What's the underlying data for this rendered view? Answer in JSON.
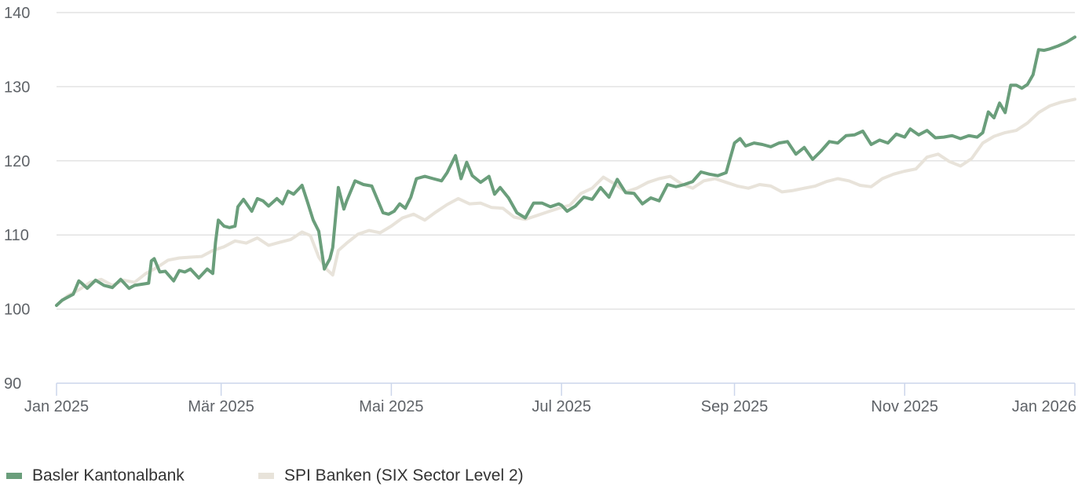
{
  "chart_data": {
    "type": "line",
    "title": "",
    "xlabel": "",
    "ylabel": "",
    "ylim": [
      90,
      140
    ],
    "yticks": [
      90,
      100,
      110,
      120,
      130,
      140
    ],
    "xlim": [
      "2025-01-01",
      "2026-01-01"
    ],
    "xticks": [
      {
        "date": "2025-01-01",
        "label": "Jan 2025"
      },
      {
        "date": "2025-03-01",
        "label": "Mär 2025"
      },
      {
        "date": "2025-05-01",
        "label": "Mai 2025"
      },
      {
        "date": "2025-07-01",
        "label": "Jul 2025"
      },
      {
        "date": "2025-09-01",
        "label": "Sep 2025"
      },
      {
        "date": "2025-11-01",
        "label": "Nov 2025"
      },
      {
        "date": "2026-01-01",
        "label": "Jan 2026"
      }
    ],
    "grid": true,
    "legend_position": "bottom-left",
    "series": [
      {
        "name": "Basler Kantonalbank",
        "color": "#6a9e7b",
        "x": [
          "2025-01-01",
          "2025-01-03",
          "2025-01-07",
          "2025-01-09",
          "2025-01-10",
          "2025-01-12",
          "2025-01-15",
          "2025-01-18",
          "2025-01-21",
          "2025-01-24",
          "2025-01-27",
          "2025-01-28",
          "2025-01-29",
          "2025-02-03",
          "2025-02-04",
          "2025-02-05",
          "2025-02-07",
          "2025-02-09",
          "2025-02-12",
          "2025-02-14",
          "2025-02-16",
          "2025-02-18",
          "2025-02-19",
          "2025-02-21",
          "2025-02-24",
          "2025-02-26",
          "2025-02-27",
          "2025-02-28",
          "2025-03-02",
          "2025-03-04",
          "2025-03-06",
          "2025-03-07",
          "2025-03-09",
          "2025-03-12",
          "2025-03-14",
          "2025-03-16",
          "2025-03-18",
          "2025-03-21",
          "2025-03-23",
          "2025-03-25",
          "2025-03-27",
          "2025-03-30",
          "2025-04-01",
          "2025-04-03",
          "2025-04-05",
          "2025-04-07",
          "2025-04-09",
          "2025-04-10",
          "2025-04-12",
          "2025-04-14",
          "2025-04-15",
          "2025-04-18",
          "2025-04-21",
          "2025-04-24",
          "2025-04-28",
          "2025-04-30",
          "2025-05-02",
          "2025-05-04",
          "2025-05-06",
          "2025-05-08",
          "2025-05-10",
          "2025-05-13",
          "2025-05-16",
          "2025-05-19",
          "2025-05-21",
          "2025-05-24",
          "2025-05-26",
          "2025-05-28",
          "2025-05-30",
          "2025-06-02",
          "2025-06-05",
          "2025-06-07",
          "2025-06-09",
          "2025-06-12",
          "2025-06-15",
          "2025-06-18",
          "2025-06-21",
          "2025-06-24",
          "2025-06-27",
          "2025-06-30",
          "2025-07-01",
          "2025-07-03",
          "2025-07-06",
          "2025-07-09",
          "2025-07-12",
          "2025-07-15",
          "2025-07-18",
          "2025-07-21",
          "2025-07-24",
          "2025-07-27",
          "2025-07-30",
          "2025-08-02",
          "2025-08-05",
          "2025-08-08",
          "2025-08-11",
          "2025-08-14",
          "2025-08-17",
          "2025-08-20",
          "2025-08-23",
          "2025-08-26",
          "2025-08-29",
          "2025-09-01",
          "2025-09-03",
          "2025-09-05",
          "2025-09-08",
          "2025-09-11",
          "2025-09-14",
          "2025-09-17",
          "2025-09-20",
          "2025-09-23",
          "2025-09-26",
          "2025-09-29",
          "2025-10-02",
          "2025-10-05",
          "2025-10-08",
          "2025-10-11",
          "2025-10-14",
          "2025-10-17",
          "2025-10-20",
          "2025-10-23",
          "2025-10-26",
          "2025-10-29",
          "2025-11-01",
          "2025-11-03",
          "2025-11-06",
          "2025-11-09",
          "2025-11-12",
          "2025-11-15",
          "2025-11-18",
          "2025-11-21",
          "2025-11-24",
          "2025-11-27",
          "2025-11-29",
          "2025-12-01",
          "2025-12-03",
          "2025-12-05",
          "2025-12-07",
          "2025-12-09",
          "2025-12-11",
          "2025-12-13",
          "2025-12-15",
          "2025-12-17",
          "2025-12-19",
          "2025-12-21",
          "2025-12-23",
          "2025-12-26",
          "2025-12-29",
          "2026-01-01"
        ],
        "values": [
          100.5,
          101.2,
          102.0,
          103.8,
          103.5,
          102.8,
          103.9,
          103.2,
          102.9,
          104.0,
          102.8,
          103.0,
          103.2,
          103.5,
          106.5,
          106.8,
          105.0,
          105.1,
          103.8,
          105.2,
          105.0,
          105.4,
          105.0,
          104.2,
          105.4,
          104.8,
          109.0,
          112.0,
          111.2,
          111.0,
          111.2,
          113.8,
          114.8,
          113.2,
          114.9,
          114.6,
          113.9,
          114.9,
          114.2,
          115.9,
          115.5,
          116.7,
          114.4,
          112.0,
          110.5,
          105.4,
          106.8,
          108.3,
          116.4,
          113.5,
          114.6,
          117.3,
          116.8,
          116.6,
          113.0,
          112.8,
          113.2,
          114.2,
          113.6,
          115.1,
          117.6,
          117.9,
          117.6,
          117.3,
          118.4,
          120.7,
          117.6,
          119.8,
          118.0,
          117.1,
          117.9,
          115.5,
          116.4,
          115.0,
          113.0,
          112.3,
          114.3,
          114.3,
          113.8,
          114.2,
          114.0,
          113.2,
          113.9,
          115.1,
          114.8,
          116.4,
          115.1,
          117.5,
          115.7,
          115.6,
          114.2,
          115.0,
          114.6,
          116.8,
          116.5,
          116.8,
          117.2,
          118.5,
          118.2,
          118.0,
          118.4,
          122.4,
          123.0,
          122.0,
          122.4,
          122.2,
          121.9,
          122.4,
          122.6,
          120.9,
          121.8,
          120.2,
          121.3,
          122.6,
          122.4,
          123.4,
          123.5,
          124.0,
          122.2,
          122.8,
          122.4,
          123.6,
          123.2,
          124.3,
          123.5,
          124.1,
          123.1,
          123.2,
          123.4,
          123.0,
          123.4,
          123.2,
          123.8,
          126.6,
          125.8,
          127.8,
          126.5,
          130.2,
          130.2,
          129.8,
          130.3,
          131.6,
          135.0,
          134.9,
          135.1,
          135.5,
          136.0,
          136.7
        ]
      },
      {
        "name": "SPI Banken (SIX Sector Level 2)",
        "color": "#e8e3da",
        "x": [
          "2025-01-01",
          "2025-01-05",
          "2025-01-09",
          "2025-01-13",
          "2025-01-17",
          "2025-01-21",
          "2025-01-25",
          "2025-01-29",
          "2025-02-02",
          "2025-02-06",
          "2025-02-10",
          "2025-02-14",
          "2025-02-18",
          "2025-02-22",
          "2025-02-26",
          "2025-03-02",
          "2025-03-06",
          "2025-03-10",
          "2025-03-14",
          "2025-03-18",
          "2025-03-22",
          "2025-03-26",
          "2025-03-30",
          "2025-04-02",
          "2025-04-05",
          "2025-04-08",
          "2025-04-10",
          "2025-04-12",
          "2025-04-15",
          "2025-04-19",
          "2025-04-23",
          "2025-04-27",
          "2025-05-01",
          "2025-05-05",
          "2025-05-09",
          "2025-05-13",
          "2025-05-17",
          "2025-05-21",
          "2025-05-25",
          "2025-05-29",
          "2025-06-02",
          "2025-06-06",
          "2025-06-10",
          "2025-06-14",
          "2025-06-18",
          "2025-06-22",
          "2025-06-26",
          "2025-06-30",
          "2025-07-04",
          "2025-07-08",
          "2025-07-12",
          "2025-07-16",
          "2025-07-20",
          "2025-07-24",
          "2025-07-28",
          "2025-08-01",
          "2025-08-05",
          "2025-08-09",
          "2025-08-13",
          "2025-08-17",
          "2025-08-21",
          "2025-08-25",
          "2025-08-29",
          "2025-09-02",
          "2025-09-06",
          "2025-09-10",
          "2025-09-14",
          "2025-09-18",
          "2025-09-22",
          "2025-09-26",
          "2025-09-30",
          "2025-10-04",
          "2025-10-08",
          "2025-10-12",
          "2025-10-16",
          "2025-10-20",
          "2025-10-24",
          "2025-10-28",
          "2025-11-01",
          "2025-11-05",
          "2025-11-09",
          "2025-11-13",
          "2025-11-17",
          "2025-11-21",
          "2025-11-25",
          "2025-11-29",
          "2025-12-03",
          "2025-12-07",
          "2025-12-11",
          "2025-12-15",
          "2025-12-19",
          "2025-12-23",
          "2025-12-27",
          "2026-01-01"
        ],
        "values": [
          100.5,
          101.8,
          102.6,
          103.6,
          104.0,
          103.2,
          103.9,
          103.6,
          104.8,
          105.6,
          106.6,
          106.9,
          107.0,
          107.1,
          107.9,
          108.4,
          109.2,
          108.9,
          109.6,
          108.6,
          109.0,
          109.4,
          110.4,
          109.9,
          107.0,
          105.3,
          104.6,
          107.9,
          108.9,
          110.1,
          110.6,
          110.3,
          111.2,
          112.3,
          112.8,
          112.0,
          113.1,
          114.1,
          114.9,
          114.2,
          114.3,
          113.7,
          113.6,
          112.4,
          112.1,
          112.6,
          113.1,
          113.6,
          114.0,
          115.6,
          116.3,
          117.8,
          116.9,
          115.8,
          116.3,
          117.1,
          117.6,
          117.9,
          116.9,
          116.3,
          117.3,
          117.6,
          117.1,
          116.6,
          116.3,
          116.8,
          116.6,
          115.8,
          116.0,
          116.3,
          116.6,
          117.2,
          117.6,
          117.3,
          116.7,
          116.5,
          117.6,
          118.2,
          118.6,
          118.9,
          120.5,
          120.9,
          119.9,
          119.3,
          120.3,
          122.4,
          123.3,
          123.8,
          124.1,
          125.1,
          126.5,
          127.4,
          127.9,
          128.3
        ]
      }
    ]
  }
}
